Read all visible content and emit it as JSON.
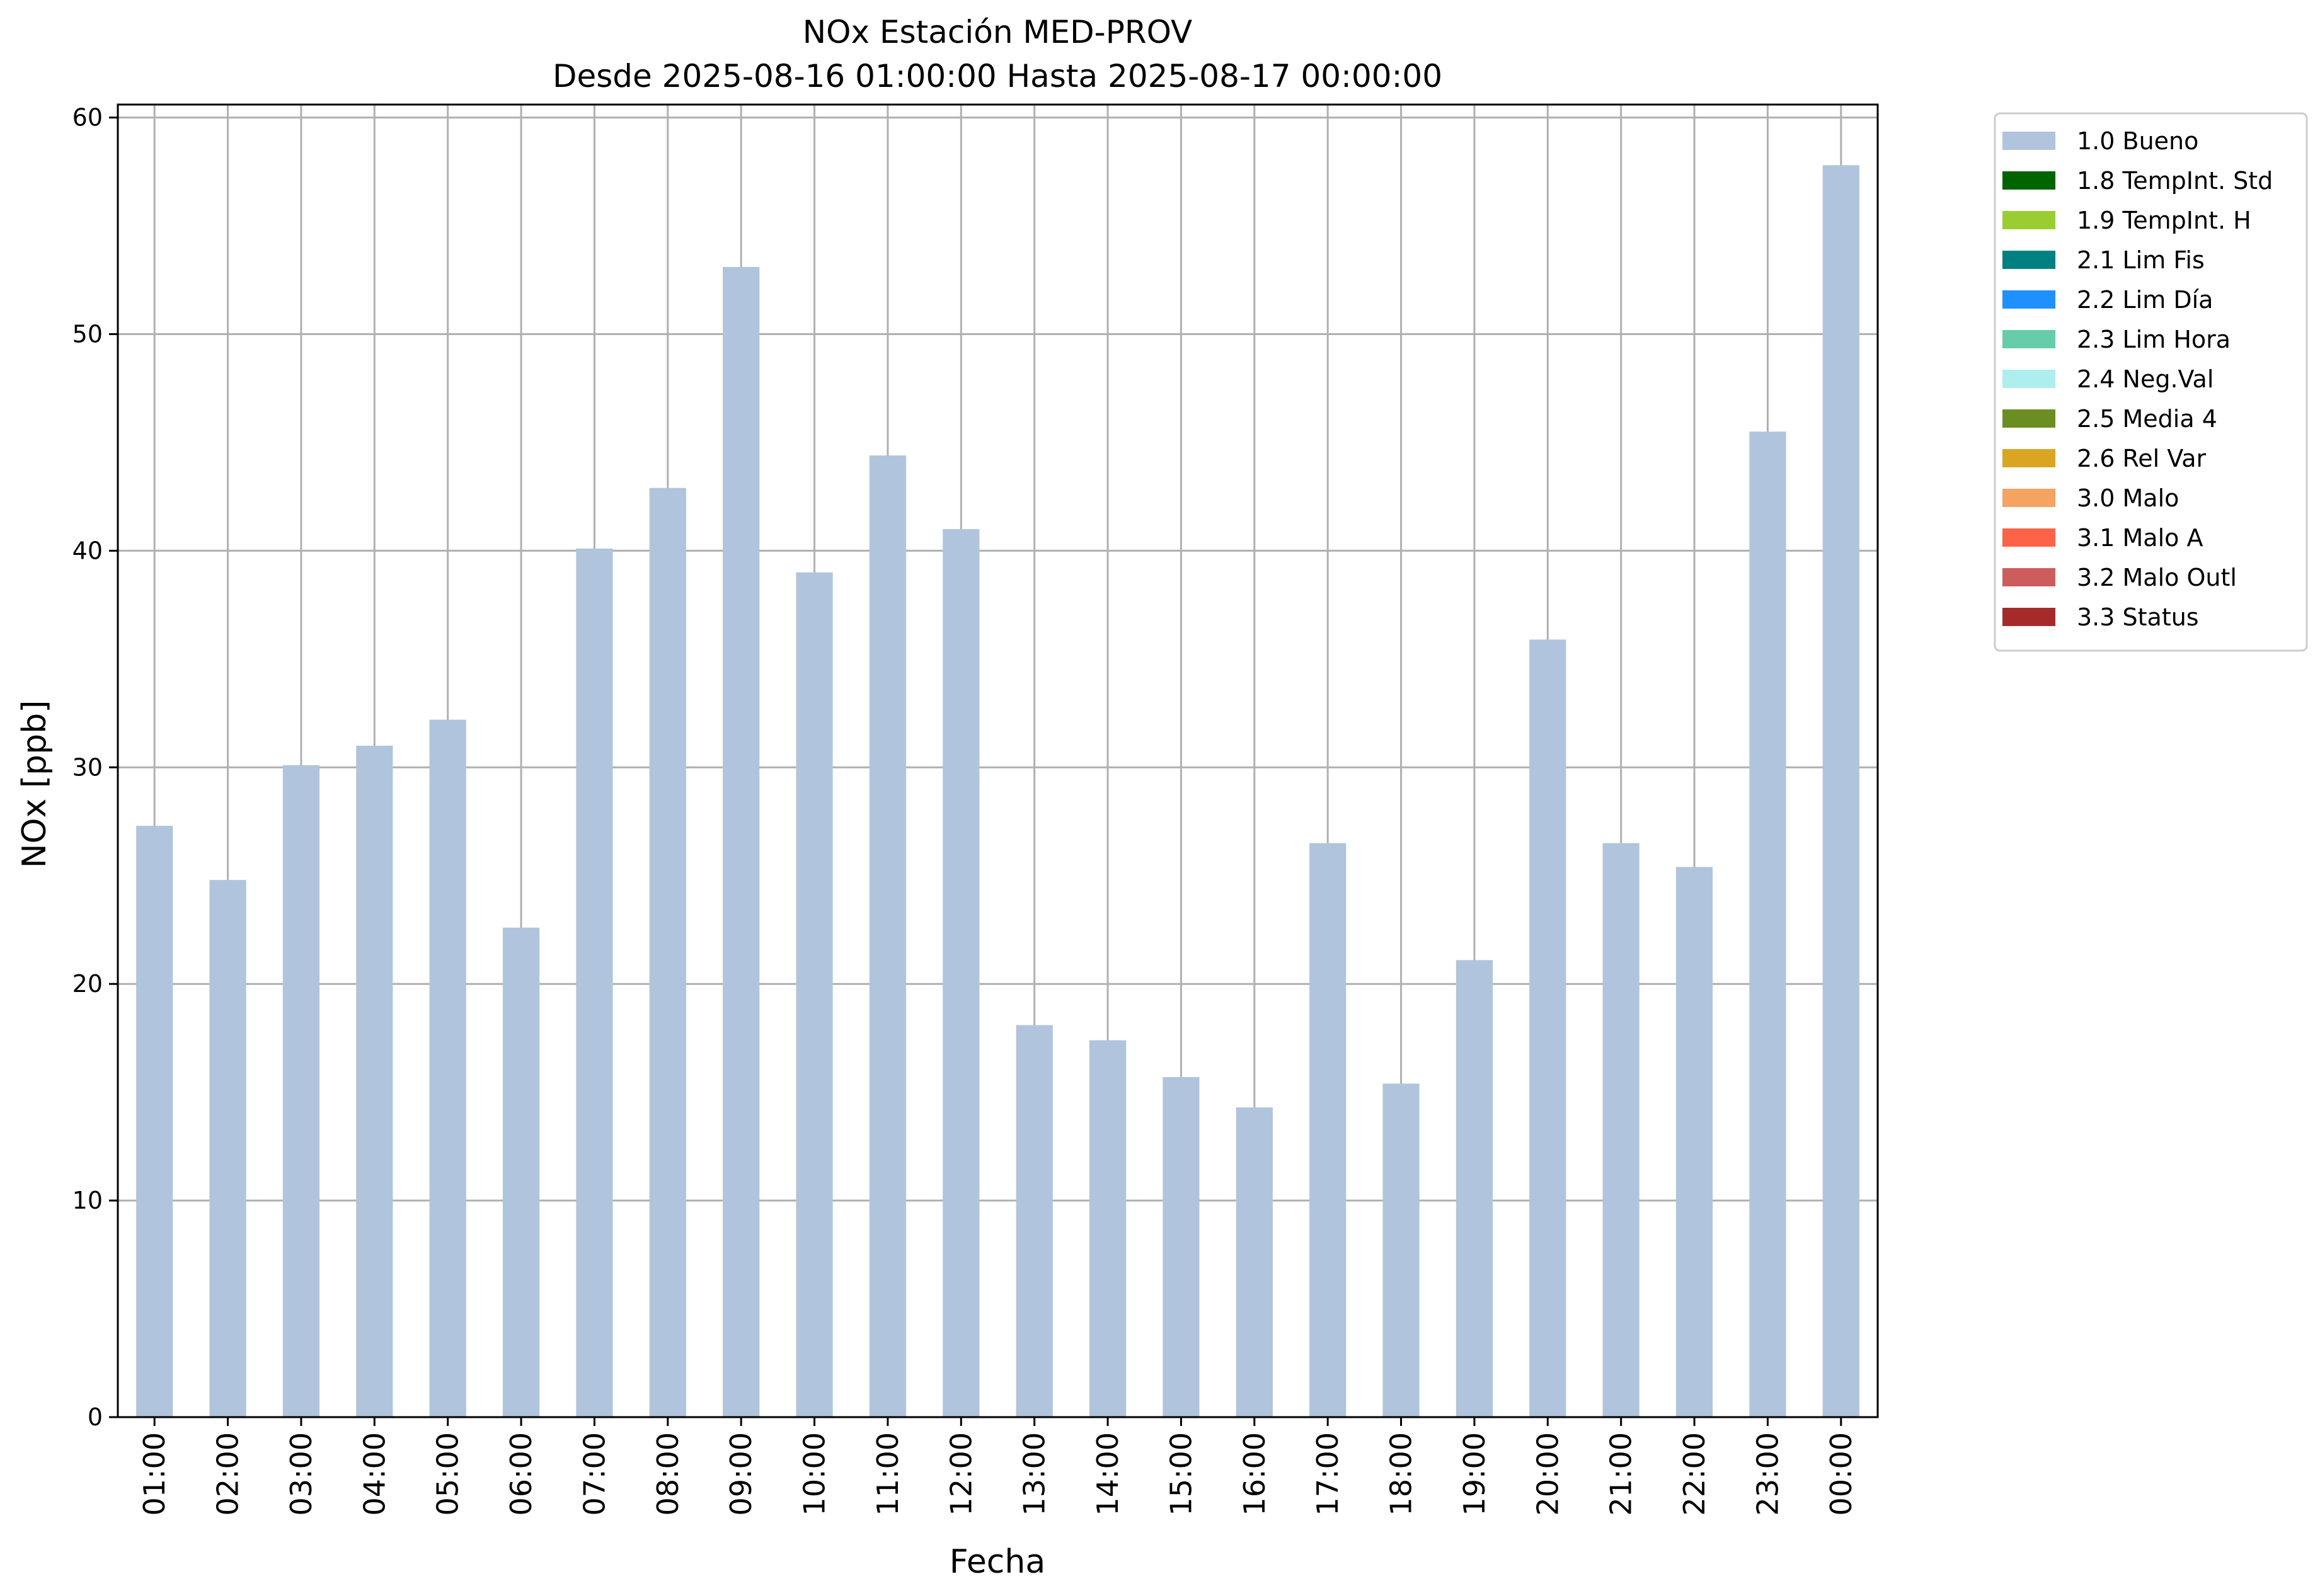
{
  "chart_data": {
    "type": "bar",
    "title": "NOx Estación MED-PROV",
    "subtitle": "Desde 2025-08-16 01:00:00 Hasta 2025-08-17 00:00:00",
    "xlabel": "Fecha",
    "ylabel": "NOx [ppb]",
    "ylim": [
      0,
      60.6
    ],
    "yticks": [
      0,
      10,
      20,
      30,
      40,
      50,
      60
    ],
    "grid": true,
    "legend_position": "outside-right",
    "categories": [
      "01:00",
      "02:00",
      "03:00",
      "04:00",
      "05:00",
      "06:00",
      "07:00",
      "08:00",
      "09:00",
      "10:00",
      "11:00",
      "12:00",
      "13:00",
      "14:00",
      "15:00",
      "16:00",
      "17:00",
      "18:00",
      "19:00",
      "20:00",
      "21:00",
      "22:00",
      "23:00",
      "00:00"
    ],
    "series": [
      {
        "name": "1.0 Bueno",
        "color": "#b0c4de",
        "values": [
          27.3,
          24.8,
          30.1,
          31.0,
          32.2,
          22.6,
          40.1,
          42.9,
          53.1,
          39.0,
          44.4,
          41.0,
          18.1,
          17.4,
          15.7,
          14.3,
          26.5,
          15.4,
          21.1,
          35.9,
          26.5,
          25.4,
          45.5,
          57.8
        ]
      }
    ],
    "legend": [
      {
        "label": "1.0 Bueno",
        "color": "#b0c4de"
      },
      {
        "label": "1.8 TempInt. Std",
        "color": "#006400"
      },
      {
        "label": "1.9 TempInt. H",
        "color": "#9acd32"
      },
      {
        "label": "2.1 Lim Fis",
        "color": "#008080"
      },
      {
        "label": "2.2 Lim Día",
        "color": "#1e90ff"
      },
      {
        "label": "2.3 Lim Hora",
        "color": "#66cdaa"
      },
      {
        "label": "2.4 Neg.Val",
        "color": "#afeeee"
      },
      {
        "label": "2.5 Media 4",
        "color": "#6b8e23"
      },
      {
        "label": "2.6 Rel Var",
        "color": "#daa520"
      },
      {
        "label": "3.0 Malo",
        "color": "#f4a460"
      },
      {
        "label": "3.1 Malo A",
        "color": "#ff6347"
      },
      {
        "label": "3.2 Malo Outl",
        "color": "#cd5c5c"
      },
      {
        "label": "3.3 Status",
        "color": "#a52a2a"
      }
    ],
    "grid_color": "#b0b0b0"
  }
}
